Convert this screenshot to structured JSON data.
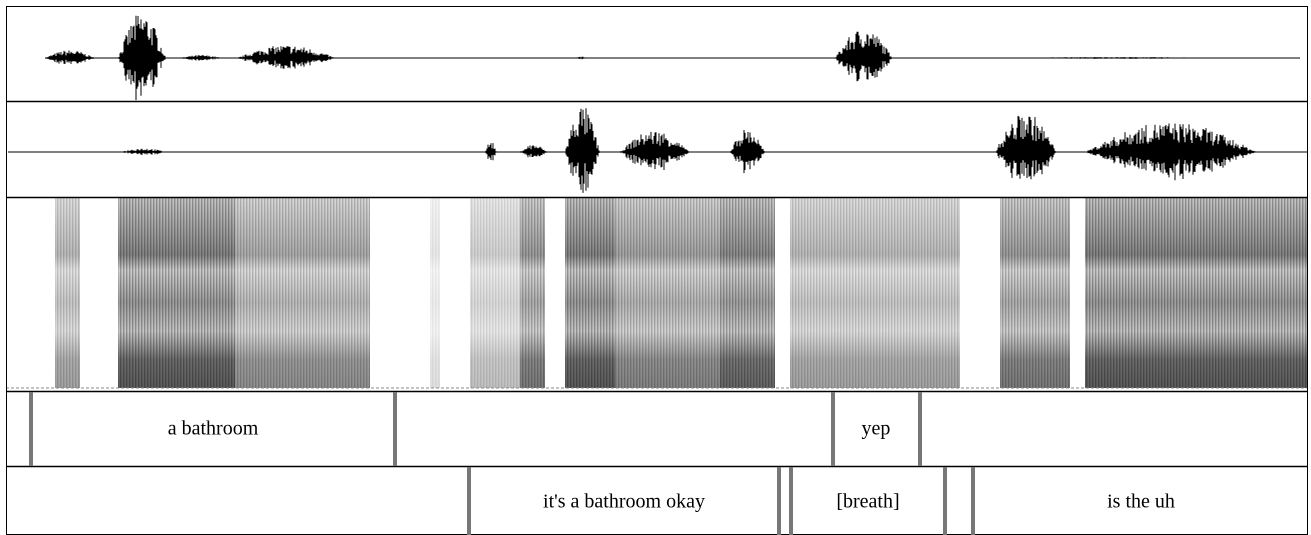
{
  "tiers": [
    {
      "intervals": [
        {
          "label": "a bathroom"
        },
        {
          "label": "yep"
        }
      ]
    },
    {
      "intervals": [
        {
          "label": "it's a bathroom okay"
        },
        {
          "label": "[breath]"
        },
        {
          "label": "is the uh"
        }
      ]
    }
  ]
}
